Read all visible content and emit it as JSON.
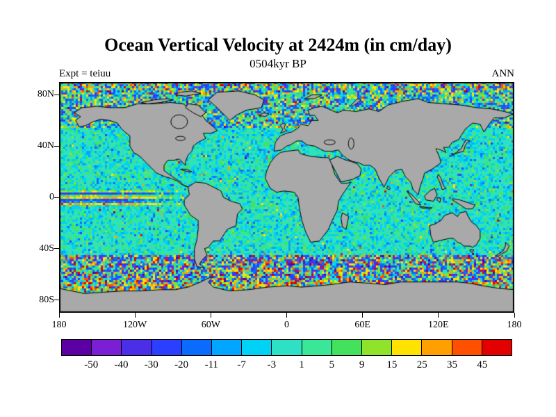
{
  "figure": {
    "title": "Ocean Vertical Velocity at 2424m (in cm/day)",
    "subtitle": "0504kyr BP",
    "experiment_label": "Expt = teiuu",
    "season_label": "ANN"
  },
  "map": {
    "land_color": "#a9a9a9",
    "coastline_color": "#000000",
    "frame_color": "#000000",
    "background_color": "#ffffff"
  },
  "chart_data": {
    "type": "heatmap",
    "title": "Ocean Vertical Velocity at 2424m (in cm/day)",
    "subtitle": "0504kyr BP",
    "annotations": [
      "Expt = teiuu",
      "ANN"
    ],
    "units": "cm/day",
    "depth_m": 2424,
    "projection": "equirectangular world map, land masked gray",
    "xlim": [
      -180,
      180
    ],
    "ylim": [
      -90,
      90
    ],
    "lon_ticks": [
      {
        "label": "180",
        "value": -180
      },
      {
        "label": "120W",
        "value": -120
      },
      {
        "label": "60W",
        "value": -60
      },
      {
        "label": "0",
        "value": 0
      },
      {
        "label": "60E",
        "value": 60
      },
      {
        "label": "120E",
        "value": 120
      },
      {
        "label": "180",
        "value": 180
      }
    ],
    "lat_ticks": [
      {
        "label": "80N",
        "value": 80
      },
      {
        "label": "40N",
        "value": 40
      },
      {
        "label": "0",
        "value": 0
      },
      {
        "label": "40S",
        "value": -40
      },
      {
        "label": "80S",
        "value": -80
      }
    ],
    "colorbar": {
      "orientation": "horizontal",
      "levels": [
        -50,
        -40,
        -30,
        -20,
        -11,
        -7,
        -3,
        1,
        5,
        9,
        15,
        25,
        35,
        45
      ],
      "colors": [
        "#5c00a3",
        "#7a1fd6",
        "#4b2fe8",
        "#2a3fff",
        "#0a6bff",
        "#00a6ff",
        "#00d2f5",
        "#2ee0c4",
        "#3ae698",
        "#44e25c",
        "#8fe32a",
        "#ffe200",
        "#ffa000",
        "#ff5000",
        "#e30000"
      ]
    },
    "field_summary": "Mostly weak values (cyan/turquoise/green) in ocean interiors; strong alternating positive/negative streaks along the equatorial Pacific; intense mixed positive and negative cells in the Southern Ocean belt (45S-70S) and high northern latitudes; land masked gray."
  }
}
